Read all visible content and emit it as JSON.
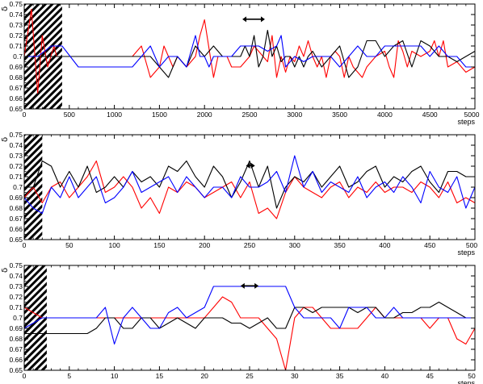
{
  "chart_data": [
    {
      "type": "line",
      "panel": "top",
      "ylabel": "δ",
      "xlabel": "steps",
      "xlim": [
        0,
        5000
      ],
      "ylim": [
        0.65,
        0.75
      ],
      "xticks": [
        "0",
        "500",
        "1000",
        "1500",
        "2000",
        "2500",
        "3000",
        "3500",
        "4000",
        "4500",
        "5000"
      ],
      "yticks": [
        "0.65",
        "0.66",
        "0.67",
        "0.68",
        "0.69",
        "0.7",
        "0.71",
        "0.72",
        "0.73",
        "0.74",
        "0.75"
      ],
      "burn_in_end": 420,
      "arrow": {
        "x_from": 2420,
        "x_to": 2670,
        "y": 0.7355
      },
      "series": [
        {
          "color": "#ff0000",
          "x": [
            0,
            80,
            150,
            200,
            260,
            330,
            360,
            420,
            600,
            800,
            1000,
            1200,
            1300,
            1400,
            1500,
            1550,
            1650,
            1700,
            1800,
            1900,
            1950,
            2000,
            2100,
            2150,
            2200,
            2250,
            2300,
            2400,
            2450,
            2500,
            2550,
            2600,
            2650,
            2700,
            2750,
            2800,
            2850,
            2900,
            2950,
            3000,
            3050,
            3100,
            3150,
            3200,
            3250,
            3300,
            3350,
            3400,
            3450,
            3500,
            3550,
            3600,
            3650,
            3700,
            3750,
            3800,
            3900,
            4000,
            4050,
            4100,
            4150,
            4200,
            4250,
            4300,
            4400,
            4500,
            4550,
            4600,
            4650,
            4700,
            4800,
            4900,
            5000
          ],
          "y": [
            0.7,
            0.745,
            0.665,
            0.72,
            0.69,
            0.71,
            0.7,
            0.7,
            0.7,
            0.7,
            0.7,
            0.7,
            0.71,
            0.68,
            0.69,
            0.71,
            0.69,
            0.7,
            0.69,
            0.7,
            0.72,
            0.735,
            0.68,
            0.7,
            0.7,
            0.7,
            0.69,
            0.69,
            0.695,
            0.7,
            0.71,
            0.705,
            0.7,
            0.695,
            0.72,
            0.68,
            0.7,
            0.685,
            0.7,
            0.695,
            0.71,
            0.7,
            0.715,
            0.7,
            0.69,
            0.7,
            0.68,
            0.7,
            0.705,
            0.7,
            0.68,
            0.7,
            0.69,
            0.685,
            0.68,
            0.69,
            0.7,
            0.705,
            0.69,
            0.68,
            0.715,
            0.705,
            0.69,
            0.705,
            0.7,
            0.705,
            0.715,
            0.7,
            0.715,
            0.69,
            0.695,
            0.685,
            0.69
          ]
        },
        {
          "color": "#000000",
          "x": [
            0,
            200,
            420,
            600,
            800,
            1000,
            1200,
            1400,
            1500,
            1600,
            1700,
            1800,
            1900,
            2000,
            2100,
            2200,
            2300,
            2400,
            2450,
            2500,
            2550,
            2600,
            2650,
            2700,
            2750,
            2800,
            2850,
            2900,
            2950,
            3000,
            3050,
            3100,
            3150,
            3200,
            3300,
            3400,
            3500,
            3600,
            3700,
            3800,
            3900,
            4000,
            4100,
            4200,
            4300,
            4400,
            4500,
            4600,
            4700,
            4800,
            4900,
            5000
          ],
          "y": [
            0.7,
            0.7,
            0.7,
            0.7,
            0.7,
            0.7,
            0.7,
            0.7,
            0.69,
            0.68,
            0.7,
            0.69,
            0.71,
            0.7,
            0.71,
            0.7,
            0.7,
            0.7,
            0.71,
            0.7,
            0.72,
            0.69,
            0.7,
            0.725,
            0.7,
            0.71,
            0.695,
            0.7,
            0.7,
            0.69,
            0.7,
            0.69,
            0.7,
            0.705,
            0.69,
            0.7,
            0.71,
            0.68,
            0.69,
            0.715,
            0.715,
            0.7,
            0.71,
            0.715,
            0.69,
            0.715,
            0.71,
            0.7,
            0.7,
            0.695,
            0.7,
            0.705
          ]
        },
        {
          "color": "#0000ff",
          "x": [
            0,
            150,
            300,
            420,
            600,
            800,
            1000,
            1200,
            1300,
            1400,
            1500,
            1600,
            1700,
            1800,
            1850,
            1900,
            1950,
            2000,
            2050,
            2100,
            2200,
            2300,
            2400,
            2500,
            2600,
            2700,
            2800,
            2850,
            2900,
            3000,
            3100,
            3200,
            3300,
            3400,
            3500,
            3600,
            3700,
            3800,
            3900,
            4000,
            4100,
            4200,
            4300,
            4400,
            4500,
            4600,
            4700,
            4800,
            4900,
            5000
          ],
          "y": [
            0.7,
            0.7,
            0.71,
            0.71,
            0.69,
            0.69,
            0.69,
            0.69,
            0.7,
            0.71,
            0.69,
            0.7,
            0.7,
            0.69,
            0.705,
            0.72,
            0.7,
            0.7,
            0.69,
            0.7,
            0.7,
            0.7,
            0.71,
            0.71,
            0.71,
            0.705,
            0.71,
            0.72,
            0.69,
            0.7,
            0.695,
            0.7,
            0.7,
            0.7,
            0.69,
            0.7,
            0.71,
            0.7,
            0.7,
            0.71,
            0.71,
            0.71,
            0.71,
            0.71,
            0.7,
            0.71,
            0.7,
            0.7,
            0.69,
            0.69
          ]
        }
      ]
    },
    {
      "type": "line",
      "panel": "middle",
      "ylabel": "δ",
      "xlabel": "steps",
      "xlim": [
        0,
        500
      ],
      "ylim": [
        0.65,
        0.75
      ],
      "xticks": [
        "0",
        "50",
        "100",
        "150",
        "200",
        "250",
        "300",
        "350",
        "400",
        "450",
        "500"
      ],
      "yticks": [
        "0.65",
        "0.66",
        "0.67",
        "0.68",
        "0.69",
        "0.7",
        "0.71",
        "0.72",
        "0.73",
        "0.74",
        "0.75"
      ],
      "burn_in_end": 20,
      "arrow": {
        "x_from": 246,
        "x_to": 256,
        "y": 0.7205
      },
      "series": [
        {
          "color": "#ff0000",
          "x": [
            0,
            10,
            20,
            30,
            40,
            50,
            60,
            70,
            80,
            90,
            100,
            110,
            120,
            130,
            140,
            150,
            160,
            170,
            180,
            190,
            200,
            210,
            220,
            230,
            240,
            250,
            260,
            270,
            280,
            290,
            300,
            310,
            320,
            330,
            340,
            350,
            360,
            370,
            380,
            390,
            400,
            410,
            420,
            430,
            440,
            450,
            460,
            470,
            480,
            490,
            500
          ],
          "y": [
            0.69,
            0.7,
            0.685,
            0.7,
            0.705,
            0.69,
            0.7,
            0.71,
            0.725,
            0.695,
            0.7,
            0.71,
            0.7,
            0.68,
            0.69,
            0.675,
            0.7,
            0.695,
            0.705,
            0.7,
            0.69,
            0.695,
            0.7,
            0.705,
            0.69,
            0.705,
            0.675,
            0.68,
            0.67,
            0.695,
            0.71,
            0.7,
            0.695,
            0.69,
            0.7,
            0.705,
            0.69,
            0.7,
            0.695,
            0.705,
            0.695,
            0.7,
            0.7,
            0.695,
            0.705,
            0.7,
            0.69,
            0.705,
            0.685,
            0.69,
            0.685
          ]
        },
        {
          "color": "#000000",
          "x": [
            0,
            10,
            20,
            30,
            40,
            50,
            60,
            70,
            80,
            90,
            100,
            110,
            120,
            130,
            140,
            150,
            160,
            170,
            180,
            190,
            200,
            210,
            220,
            230,
            240,
            250,
            260,
            270,
            280,
            290,
            300,
            310,
            320,
            330,
            340,
            350,
            360,
            370,
            380,
            390,
            400,
            410,
            420,
            430,
            440,
            450,
            460,
            470,
            480,
            490,
            500
          ],
          "y": [
            0.7,
            0.7,
            0.725,
            0.72,
            0.7,
            0.715,
            0.7,
            0.72,
            0.695,
            0.7,
            0.71,
            0.7,
            0.715,
            0.705,
            0.71,
            0.7,
            0.72,
            0.715,
            0.725,
            0.71,
            0.7,
            0.72,
            0.71,
            0.69,
            0.705,
            0.725,
            0.7,
            0.72,
            0.68,
            0.7,
            0.71,
            0.705,
            0.715,
            0.7,
            0.71,
            0.72,
            0.7,
            0.705,
            0.715,
            0.72,
            0.7,
            0.71,
            0.705,
            0.715,
            0.72,
            0.705,
            0.695,
            0.715,
            0.715,
            0.71,
            0.71
          ]
        },
        {
          "color": "#0000ff",
          "x": [
            0,
            10,
            20,
            30,
            40,
            50,
            60,
            70,
            80,
            90,
            100,
            110,
            120,
            130,
            140,
            150,
            160,
            170,
            180,
            190,
            200,
            210,
            220,
            230,
            240,
            250,
            260,
            270,
            280,
            290,
            300,
            310,
            320,
            330,
            340,
            350,
            360,
            370,
            380,
            390,
            400,
            410,
            420,
            430,
            440,
            450,
            460,
            470,
            480,
            490,
            500
          ],
          "y": [
            0.69,
            0.68,
            0.675,
            0.7,
            0.69,
            0.71,
            0.69,
            0.7,
            0.71,
            0.685,
            0.69,
            0.7,
            0.715,
            0.695,
            0.7,
            0.705,
            0.71,
            0.695,
            0.71,
            0.7,
            0.69,
            0.7,
            0.7,
            0.69,
            0.71,
            0.7,
            0.7,
            0.705,
            0.715,
            0.695,
            0.73,
            0.7,
            0.715,
            0.695,
            0.705,
            0.7,
            0.695,
            0.71,
            0.69,
            0.7,
            0.705,
            0.695,
            0.71,
            0.7,
            0.685,
            0.715,
            0.7,
            0.695,
            0.71,
            0.68,
            0.7
          ]
        }
      ]
    },
    {
      "type": "line",
      "panel": "bottom",
      "ylabel": "δ",
      "xlabel": "steps",
      "xlim": [
        0,
        50
      ],
      "ylim": [
        0.65,
        0.75
      ],
      "xticks": [
        "0",
        "5",
        "10",
        "15",
        "20",
        "25",
        "30",
        "35",
        "40",
        "45",
        "50"
      ],
      "yticks": [
        "0.65",
        "0.66",
        "0.67",
        "0.68",
        "0.69",
        "0.7",
        "0.71",
        "0.72",
        "0.73",
        "0.74",
        "0.75"
      ],
      "burn_in_end": 2.5,
      "arrow": {
        "x_from": 24,
        "x_to": 26,
        "y": 0.7305
      },
      "series": [
        {
          "color": "#ff0000",
          "x": [
            0,
            1,
            2,
            3,
            4,
            5,
            6,
            7,
            8,
            9,
            10,
            11,
            12,
            13,
            14,
            15,
            16,
            17,
            18,
            19,
            20,
            21,
            22,
            23,
            24,
            25,
            26,
            27,
            28,
            29,
            30,
            31,
            32,
            33,
            34,
            35,
            36,
            37,
            38,
            39,
            40,
            41,
            42,
            43,
            44,
            45,
            46,
            47,
            48,
            49,
            50
          ],
          "y": [
            0.71,
            0.705,
            0.7,
            0.7,
            0.7,
            0.7,
            0.7,
            0.7,
            0.7,
            0.7,
            0.7,
            0.7,
            0.7,
            0.7,
            0.7,
            0.7,
            0.7,
            0.7,
            0.7,
            0.7,
            0.7,
            0.71,
            0.72,
            0.715,
            0.7,
            0.7,
            0.7,
            0.69,
            0.68,
            0.65,
            0.7,
            0.71,
            0.71,
            0.7,
            0.69,
            0.69,
            0.69,
            0.69,
            0.7,
            0.71,
            0.7,
            0.7,
            0.7,
            0.7,
            0.7,
            0.69,
            0.7,
            0.7,
            0.68,
            0.675,
            0.69
          ]
        },
        {
          "color": "#000000",
          "x": [
            0,
            1,
            2,
            3,
            4,
            5,
            6,
            7,
            8,
            9,
            10,
            11,
            12,
            13,
            14,
            15,
            16,
            17,
            18,
            19,
            20,
            21,
            22,
            23,
            24,
            25,
            26,
            27,
            28,
            29,
            30,
            31,
            32,
            33,
            34,
            35,
            36,
            37,
            38,
            39,
            40,
            41,
            42,
            43,
            44,
            45,
            46,
            47,
            48,
            49,
            50
          ],
          "y": [
            0.685,
            0.685,
            0.685,
            0.685,
            0.685,
            0.685,
            0.685,
            0.685,
            0.69,
            0.7,
            0.7,
            0.69,
            0.69,
            0.7,
            0.7,
            0.69,
            0.695,
            0.7,
            0.695,
            0.69,
            0.7,
            0.7,
            0.7,
            0.695,
            0.695,
            0.69,
            0.695,
            0.7,
            0.69,
            0.69,
            0.71,
            0.71,
            0.705,
            0.71,
            0.71,
            0.71,
            0.71,
            0.705,
            0.71,
            0.71,
            0.7,
            0.7,
            0.705,
            0.705,
            0.71,
            0.71,
            0.715,
            0.71,
            0.705,
            0.7,
            0.7
          ]
        },
        {
          "color": "#0000ff",
          "x": [
            0,
            1,
            2,
            3,
            4,
            5,
            6,
            7,
            8,
            9,
            10,
            11,
            12,
            13,
            14,
            15,
            16,
            17,
            18,
            19,
            20,
            21,
            22,
            23,
            24,
            25,
            26,
            27,
            28,
            29,
            30,
            31,
            32,
            33,
            34,
            35,
            36,
            37,
            38,
            39,
            40,
            41,
            42,
            43,
            44,
            45,
            46,
            47,
            48,
            49,
            50
          ],
          "y": [
            0.69,
            0.695,
            0.7,
            0.7,
            0.7,
            0.7,
            0.7,
            0.7,
            0.7,
            0.71,
            0.675,
            0.7,
            0.71,
            0.7,
            0.69,
            0.69,
            0.705,
            0.71,
            0.7,
            0.705,
            0.71,
            0.73,
            0.73,
            0.73,
            0.73,
            0.73,
            0.73,
            0.73,
            0.73,
            0.73,
            0.71,
            0.7,
            0.7,
            0.7,
            0.7,
            0.69,
            0.71,
            0.71,
            0.71,
            0.7,
            0.7,
            0.71,
            0.7,
            0.7,
            0.7,
            0.7,
            0.7,
            0.7,
            0.7,
            0.7,
            0.7
          ]
        }
      ]
    }
  ]
}
